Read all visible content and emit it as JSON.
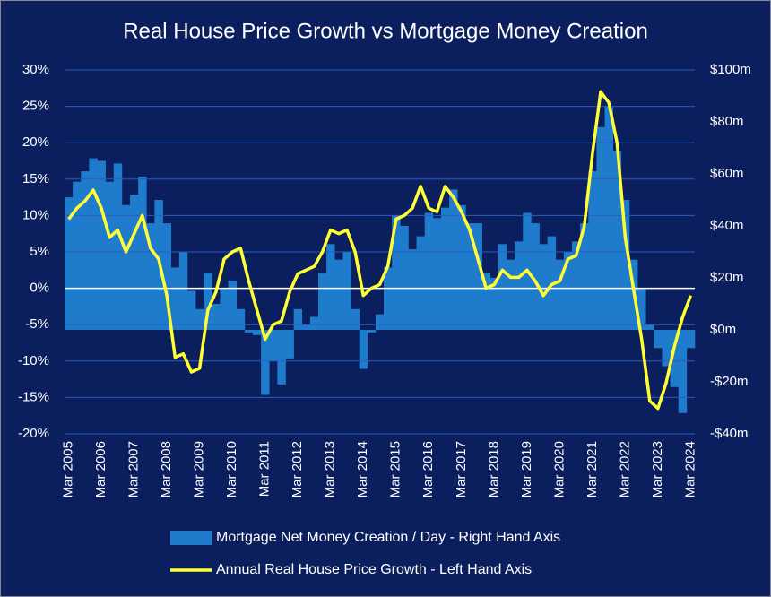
{
  "chart_data": {
    "type": "bar-line",
    "title": "Real House Price Growth vs Mortgage Money Creation",
    "categories": [
      "Mar 2005",
      null,
      null,
      null,
      "Mar 2006",
      null,
      null,
      null,
      "Mar 2007",
      null,
      null,
      null,
      "Mar 2008",
      null,
      null,
      null,
      "Mar 2009",
      null,
      null,
      null,
      "Mar 2010",
      null,
      null,
      null,
      "Mar 2011",
      null,
      null,
      null,
      "Mar 2012",
      null,
      null,
      null,
      "Mar 2013",
      null,
      null,
      null,
      "Mar 2014",
      null,
      null,
      null,
      "Mar 2015",
      null,
      null,
      null,
      "Mar 2016",
      null,
      null,
      null,
      "Mar 2017",
      null,
      null,
      null,
      "Mar 2018",
      null,
      null,
      null,
      "Mar 2019",
      null,
      null,
      null,
      "Mar 2020",
      null,
      null,
      null,
      "Mar 2021",
      null,
      null,
      null,
      "Mar 2022",
      null,
      null,
      null,
      "Mar 2023",
      null,
      null,
      null,
      "Mar 2024"
    ],
    "series": [
      {
        "name": "Mortgage Net Money Creation / Day - Right Hand Axis",
        "type": "bar",
        "axis": "y2",
        "color": "#1f7ccc",
        "values": [
          51,
          57,
          61,
          66,
          65,
          57,
          64,
          48,
          52,
          59,
          41,
          50,
          41,
          24,
          30,
          15,
          8,
          22,
          10,
          16,
          19,
          8,
          -1,
          -2,
          -25,
          -12,
          -21,
          -11,
          8,
          2,
          5,
          22,
          33,
          27,
          30,
          8,
          -15,
          -1,
          6,
          24,
          44,
          40,
          31,
          36,
          45,
          43,
          47,
          54,
          48,
          41,
          41,
          22,
          20,
          33,
          27,
          34,
          45,
          41,
          33,
          36,
          27,
          30,
          34,
          41,
          61,
          78,
          86,
          69,
          50,
          27,
          16,
          2,
          -7,
          -14,
          -22,
          -32,
          -7
        ]
      },
      {
        "name": "Annual Real House Price Growth - Left Hand Axis",
        "type": "line",
        "axis": "y",
        "color": "#ffff33",
        "values": [
          9.5,
          11,
          12,
          13.5,
          11,
          7,
          8,
          5,
          7.5,
          10,
          5.5,
          4,
          -1,
          -9.5,
          -9,
          -11.5,
          -11,
          -3,
          -0.5,
          4,
          5,
          5.5,
          1,
          -3,
          -7,
          -5,
          -4.5,
          -0.5,
          2,
          2.5,
          3,
          5,
          8,
          7.5,
          8,
          5,
          -1,
          0,
          0.5,
          3,
          9.5,
          10,
          11,
          14,
          11,
          10.5,
          14,
          12.5,
          10.5,
          8,
          4,
          0,
          0.5,
          2.5,
          1.5,
          1.5,
          2.5,
          1,
          -1,
          0.5,
          1,
          4,
          4.5,
          8.5,
          18.5,
          27,
          25.5,
          20,
          7,
          0,
          -7,
          -15.5,
          -16.5,
          -13,
          -8,
          -4,
          -1
        ]
      }
    ],
    "ylim": [
      -20,
      30
    ],
    "yticks": [
      {
        "value": -20,
        "label": "-20%"
      },
      {
        "value": -15,
        "label": "-15%"
      },
      {
        "value": -10,
        "label": "-10%"
      },
      {
        "value": -5,
        "label": "-5%"
      },
      {
        "value": 0,
        "label": "0%"
      },
      {
        "value": 5,
        "label": "5%"
      },
      {
        "value": 10,
        "label": "10%"
      },
      {
        "value": 15,
        "label": "15%"
      },
      {
        "value": 20,
        "label": "20%"
      },
      {
        "value": 25,
        "label": "25%"
      },
      {
        "value": 30,
        "label": "30%"
      }
    ],
    "y2lim": [
      -40,
      100
    ],
    "y2ticks": [
      {
        "value": -40,
        "label": "-$40m"
      },
      {
        "value": -20,
        "label": "-$20m"
      },
      {
        "value": 0,
        "label": "$0m"
      },
      {
        "value": 20,
        "label": "$20m"
      },
      {
        "value": 40,
        "label": "$40m"
      },
      {
        "value": 60,
        "label": "$60m"
      },
      {
        "value": 80,
        "label": "$80m"
      },
      {
        "value": 100,
        "label": "$100m"
      }
    ],
    "grid": true
  }
}
